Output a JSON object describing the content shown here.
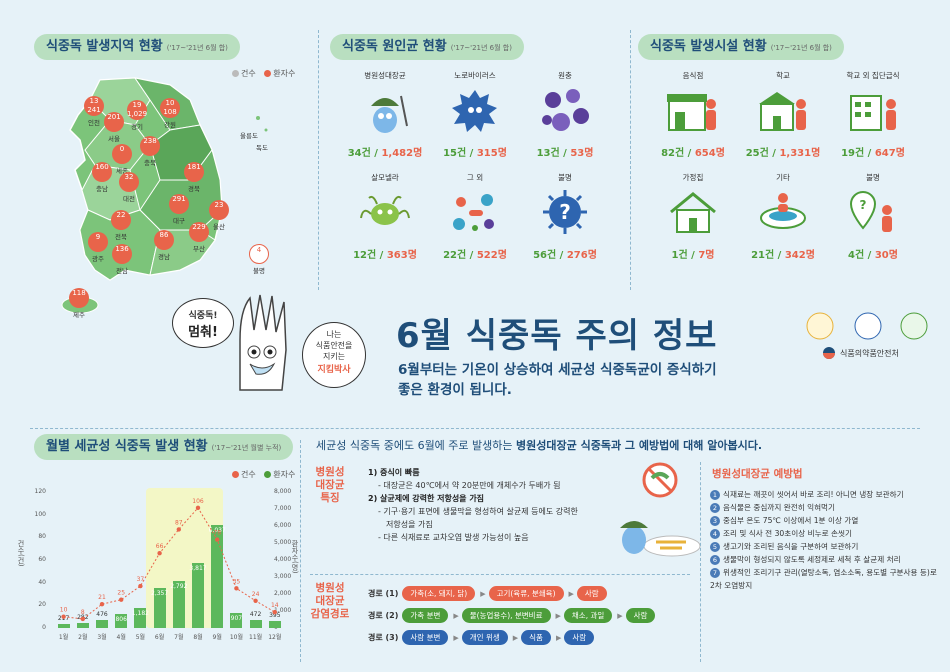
{
  "sections": {
    "region": {
      "title": "식중독 발생지역 현황",
      "sub": "('17~'21년 6월 합)"
    },
    "pathogen": {
      "title": "식중독 원인균 현황",
      "sub": "('17~'21년 6월 합)"
    },
    "facility": {
      "title": "식중독 발생시설 현황",
      "sub": "('17~'21년 6월 합)"
    },
    "monthly": {
      "title": "월별 세균성 식중독 발생 현황",
      "sub": "('17~'21년 월별 누적)"
    }
  },
  "legend": {
    "cases": "건수",
    "patients": "환자수"
  },
  "map": {
    "regions": [
      {
        "name": "인천",
        "cases": "13",
        "patients": "241"
      },
      {
        "name": "서울",
        "cases": "",
        "patients": "201"
      },
      {
        "name": "경기",
        "cases": "19",
        "patients": "1,029"
      },
      {
        "name": "강원",
        "cases": "10",
        "patients": "108"
      },
      {
        "name": "세종",
        "cases": "0",
        "patients": "0"
      },
      {
        "name": "충북",
        "cases": "",
        "patients": "238"
      },
      {
        "name": "충남",
        "cases": "",
        "patients": "160"
      },
      {
        "name": "대전",
        "cases": "",
        "patients": "32"
      },
      {
        "name": "경북",
        "cases": "",
        "patients": "181"
      },
      {
        "name": "대구",
        "cases": "",
        "patients": "291"
      },
      {
        "name": "전북",
        "cases": "",
        "patients": "22"
      },
      {
        "name": "울산",
        "cases": "",
        "patients": "23"
      },
      {
        "name": "광주",
        "cases": "",
        "patients": "9"
      },
      {
        "name": "전남",
        "cases": "",
        "patients": "136"
      },
      {
        "name": "경남",
        "cases": "",
        "patients": "86"
      },
      {
        "name": "부산",
        "cases": "",
        "patients": "229"
      },
      {
        "name": "제주",
        "cases": "",
        "patients": "118"
      },
      {
        "name": "불명",
        "cases": "",
        "patients": "4"
      }
    ],
    "islands": [
      "울릉도",
      "독도"
    ]
  },
  "pathogens": [
    {
      "label": "병원성대장균",
      "cases": "34건",
      "patients": "1,482명"
    },
    {
      "label": "노로바이러스",
      "cases": "15건",
      "patients": "315명"
    },
    {
      "label": "원충",
      "cases": "13건",
      "patients": "53명"
    },
    {
      "label": "살모넬라",
      "cases": "12건",
      "patients": "363명"
    },
    {
      "label": "그 외",
      "cases": "22건",
      "patients": "522명"
    },
    {
      "label": "불명",
      "cases": "56건",
      "patients": "276명"
    }
  ],
  "facilities": [
    {
      "label": "음식점",
      "cases": "82건",
      "patients": "654명"
    },
    {
      "label": "학교",
      "cases": "25건",
      "patients": "1,331명"
    },
    {
      "label": "학교 외 집단급식",
      "cases": "19건",
      "patients": "647명"
    },
    {
      "label": "가정집",
      "cases": "1건",
      "patients": "7명"
    },
    {
      "label": "기타",
      "cases": "21건",
      "patients": "342명"
    },
    {
      "label": "불명",
      "cases": "4건",
      "patients": "30명"
    }
  ],
  "hero": {
    "title": "6월 식중독 주의 정보",
    "subtitle_line1": "6월부터는 기온이 상승하여 세균성 식중독균이 증식하기",
    "subtitle_line2": "좋은 환경이 됩니다.",
    "bubble_left_1": "식중독!",
    "bubble_left_2": "멈춰!",
    "bubble_right_1": "나는",
    "bubble_right_2": "식품안전을",
    "bubble_right_3": "지키는",
    "bubble_right_4": "지킴박사",
    "org": "식품의약품안전처"
  },
  "banner": {
    "pre": "세균성 식중독 중에도 6월에 주로 발생하는 ",
    "strong": "병원성대장균 식중독과 그 예방법에 대해 알아봅시다."
  },
  "chart_data": {
    "type": "bar",
    "categories": [
      "1월",
      "2월",
      "3월",
      "4월",
      "5월",
      "6월",
      "7월",
      "8월",
      "9월",
      "10월",
      "11월",
      "12월"
    ],
    "series": [
      {
        "name": "건수",
        "values": [
          10,
          8,
          21,
          25,
          37,
          66,
          87,
          106,
          78,
          35,
          24,
          14
        ]
      },
      {
        "name": "환자수",
        "values": [
          217,
          282,
          476,
          806,
          1182,
          2357,
          2792,
          3817,
          6037,
          907,
          472,
          395
        ]
      }
    ],
    "ylim_left": [
      0,
      120
    ],
    "yticks_left": [
      0,
      20,
      40,
      60,
      80,
      100,
      120
    ],
    "ylim_right": [
      0,
      8000
    ],
    "yticks_right": [
      "0",
      "1,000",
      "2,000",
      "3,000",
      "4,000",
      "5,000",
      "6,000",
      "7,000",
      "8,000"
    ],
    "ylabel_left": "건수(건)",
    "ylabel_right": "환자수(명)"
  },
  "features": {
    "label": "병원성 대장균 특징",
    "item1_title": "1) 증식이 빠름",
    "item1_desc": "- 대장균은 40℃에서 약 20분만에 개체수가 두배가 됨",
    "item2_title": "2) 살균제에 강력한 저항성을 가짐",
    "item2_desc1": "- 기구·용기 표면에 생물막을 형성하여 살균제 등에도 강력한",
    "item2_desc2": "저항성을 가짐",
    "item2_desc3": "- 다른 식재료로 교차오염 발생 가능성이 높음"
  },
  "routes": {
    "label": "병원성 대장균 감염경로",
    "r1": {
      "label": "경로 (1)",
      "steps": [
        "가축(소, 돼지, 닭)",
        "고기(육류, 분쇄육)",
        "사람"
      ]
    },
    "r2": {
      "label": "경로 (2)",
      "steps": [
        "가축 분변",
        "물(농업용수), 분변비료",
        "채소, 과일",
        "사람"
      ]
    },
    "r3": {
      "label": "경로 (3)",
      "steps": [
        "사람 분변",
        "개인 위생",
        "식품",
        "사람"
      ]
    }
  },
  "prevention": {
    "title": "병원성대장균 예방법",
    "items": [
      "식재료는 깨끗이 씻어서 바로 조리! 아니면 냉장 보관하기",
      "음식물은 중심까지 완전히 익혀먹기",
      "중심부 온도 75℃ 이상에서 1분 이상 가열",
      "조리 및 식사 전 30초이상 비누로 손씻기",
      "생고기와 조리된 음식을 구분하여 보관하기",
      "생물막이 형성되지 않도록 세정제로 세척 후 살균제 처리",
      "위생적인 조리기구 관리(열탕소독, 염소소독, 용도별 구분사용 등)로 2차 오염방지"
    ]
  },
  "colors": {
    "cases": "#e8644a",
    "patients": "#4c9d3a",
    "navy": "#1f4e79"
  }
}
